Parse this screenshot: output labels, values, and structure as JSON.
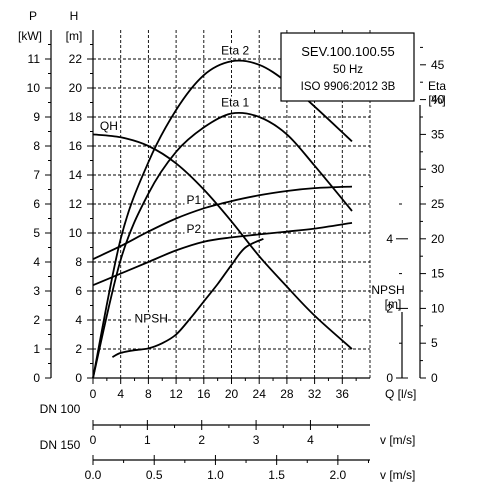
{
  "chart_data": {
    "type": "line",
    "title": "SEV.100.100.55",
    "title_lines": [
      "50 Hz",
      "ISO 9906:2012 3B"
    ],
    "x_axis": {
      "label": "Q [l/s]",
      "ticks": [
        "0",
        "4",
        "8",
        "12",
        "16",
        "20",
        "24",
        "28",
        "32",
        "36"
      ],
      "range": [
        0,
        40
      ]
    },
    "left_axes": [
      {
        "name": "P",
        "unit": "[kW]",
        "range": [
          0,
          12
        ],
        "ticks": [
          "0",
          "1",
          "2",
          "3",
          "4",
          "5",
          "6",
          "7",
          "8",
          "9",
          "10",
          "11"
        ]
      },
      {
        "name": "H",
        "unit": "[m]",
        "range": [
          0,
          24
        ],
        "ticks": [
          "0",
          "2",
          "4",
          "6",
          "8",
          "10",
          "12",
          "14",
          "16",
          "18",
          "20",
          "22"
        ]
      }
    ],
    "right_axes": [
      {
        "name": "Eta",
        "unit": "[%]",
        "range": [
          0,
          50
        ],
        "ticks": [
          "0",
          "5",
          "10",
          "15",
          "20",
          "25",
          "30",
          "35",
          "40",
          "45"
        ]
      },
      {
        "name": "NPSH",
        "unit": "[m]",
        "range": [
          0,
          10
        ],
        "ticks": [
          "0",
          "2",
          "4"
        ]
      }
    ],
    "velocity_axes": [
      {
        "name": "DN 100",
        "label": "v [m/s]",
        "ticks": [
          "0",
          "1",
          "2",
          "3",
          "4"
        ],
        "unit_flow_per_tick": 7.85
      },
      {
        "name": "DN 150",
        "label": "v [m/s]",
        "ticks": [
          "0.0",
          "0.5",
          "1.0",
          "1.5",
          "2.0"
        ],
        "unit_flow_per_tick": 8.84
      }
    ],
    "grid": true,
    "series": [
      {
        "name": "QH",
        "axis": "H",
        "label_at": [
          1,
          17.1
        ],
        "x": [
          0,
          4,
          8,
          12,
          16,
          20,
          24,
          28,
          32,
          37.4
        ],
        "y": [
          16.8,
          16.6,
          16.0,
          14.8,
          13.0,
          10.8,
          8.4,
          6.3,
          4.3,
          2.0
        ]
      },
      {
        "name": "Eta 2",
        "axis": "Eta",
        "label_at": [
          18.5,
          46.5
        ],
        "x": [
          0,
          4,
          8,
          12,
          16,
          20,
          24,
          28,
          32,
          37.4
        ],
        "y": [
          0,
          20,
          31,
          38.5,
          43.5,
          45.5,
          45,
          42.5,
          39,
          34
        ]
      },
      {
        "name": "Eta 1",
        "axis": "Eta",
        "label_at": [
          18.5,
          39
        ],
        "x": [
          0,
          4,
          8,
          12,
          16,
          20,
          24,
          28,
          32,
          37.4
        ],
        "y": [
          0,
          17,
          26.5,
          32.5,
          36,
          38,
          37.5,
          35,
          30.5,
          24
        ]
      },
      {
        "name": "P1",
        "axis": "P",
        "label_at": [
          13.5,
          6.0
        ],
        "x": [
          0,
          4,
          8,
          12,
          16,
          20,
          24,
          28,
          32,
          37.4
        ],
        "y": [
          4.1,
          4.55,
          5.05,
          5.5,
          5.85,
          6.1,
          6.3,
          6.45,
          6.55,
          6.6
        ]
      },
      {
        "name": "P2",
        "axis": "P",
        "label_at": [
          13.5,
          5.0
        ],
        "x": [
          0,
          4,
          8,
          12,
          16,
          20,
          24,
          28,
          32,
          37.4
        ],
        "y": [
          3.2,
          3.6,
          4.0,
          4.4,
          4.7,
          4.85,
          4.95,
          5.05,
          5.15,
          5.35
        ]
      },
      {
        "name": "NPSH",
        "axis": "NPSH",
        "label_at": [
          6,
          1.6
        ],
        "x": [
          2.8,
          4,
          6,
          8,
          10,
          12,
          14,
          16,
          18,
          20,
          22,
          24.6
        ],
        "y": [
          0.6,
          0.72,
          0.8,
          0.85,
          1.0,
          1.25,
          1.7,
          2.2,
          2.7,
          3.25,
          3.75,
          4.0
        ]
      }
    ]
  }
}
